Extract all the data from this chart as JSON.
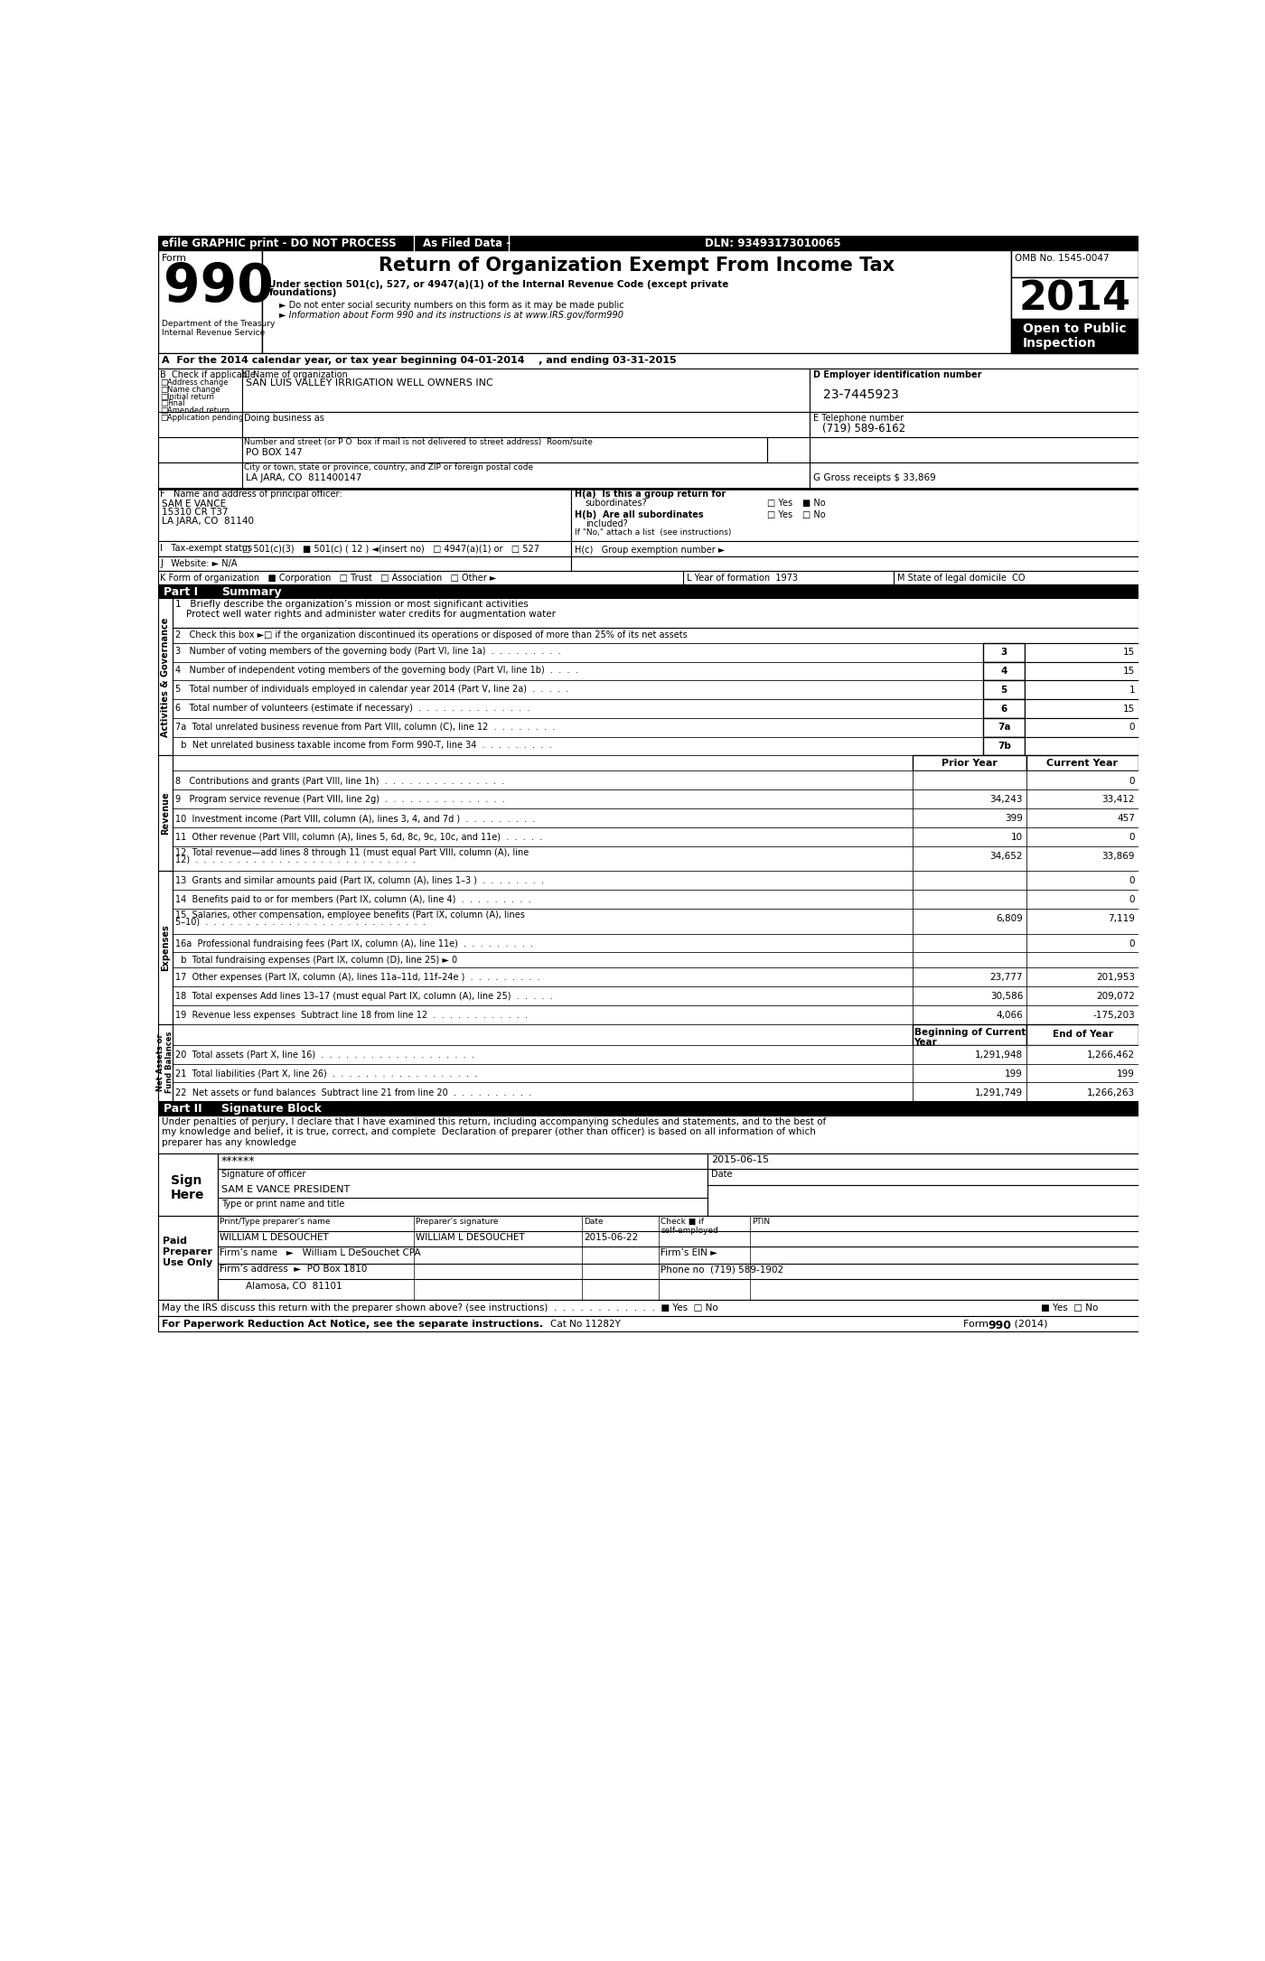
{
  "title": "Return of Organization Exempt From Income Tax",
  "subtitle": "Under section 501(c), 527, or 4947(a)(1) of the Internal Revenue Code (except private\nfoundations)",
  "form_number": "990",
  "year": "2014",
  "omb": "OMB No. 1545-0047",
  "open_to_public": "Open to Public\nInspection",
  "efile_header": "efile GRAPHIC print - DO NOT PROCESS",
  "as_filed": "As Filed Data -",
  "dln": "DLN: 93493173010065",
  "dept": "Department of the Treasury\nInternal Revenue Service",
  "bullet1": "► Do not enter social security numbers on this form as it may be made public",
  "bullet2": "► Information about Form 990 and its instructions is at www.IRS.gov/form990",
  "section_a": "A  For the 2014 calendar year, or tax year beginning 04-01-2014    , and ending 03-31-2015",
  "org_name": "SAN LUIS VALLEY IRRIGATION WELL OWNERS INC",
  "ein": "23-7445923",
  "phone": "(719) 589-6162",
  "city": "LA JARA, CO  811400147",
  "g_label": "G Gross receipts $ 33,869",
  "officer_name": "SAM E VANCE",
  "officer_addr1": "15310 CR T37",
  "officer_addr2": "LA JARA, CO  81140",
  "line1_text": "Protect well water rights and administer water credits for augmentation water",
  "line3_val": "15",
  "line4_val": "15",
  "line5_val": "1",
  "line6_val": "15",
  "line7a_val": "0",
  "col_prior": "Prior Year",
  "col_current": "Current Year",
  "line8_prior": "",
  "line8_current": "0",
  "line9_prior": "34,243",
  "line9_current": "33,412",
  "line10_prior": "399",
  "line10_current": "457",
  "line11_prior": "10",
  "line11_current": "0",
  "line12_prior": "34,652",
  "line12_current": "33,869",
  "line13_prior": "",
  "line13_current": "0",
  "line14_prior": "",
  "line14_current": "0",
  "line15_prior": "6,809",
  "line15_current": "7,119",
  "line16a_prior": "",
  "line16a_current": "0",
  "line17_prior": "23,777",
  "line17_current": "201,953",
  "line18_prior": "30,586",
  "line18_current": "209,072",
  "line19_prior": "4,066",
  "line19_current": "-175,203",
  "col_beg": "Beginning of Current\nYear",
  "col_end": "End of Year",
  "line20_beg": "1,291,948",
  "line20_end": "1,266,462",
  "line21_beg": "199",
  "line21_end": "199",
  "line22_beg": "1,291,749",
  "line22_end": "1,266,263",
  "sig_text": "Under penalties of perjury, I declare that I have examined this return, including accompanying schedules and statements, and to the best of\nmy knowledge and belief, it is true, correct, and complete  Declaration of preparer (other than officer) is based on all information of which\npreparer has any knowledge",
  "sig_stars": "******",
  "sig_date": "2015-06-15",
  "sig_name": "SAM E VANCE PRESIDENT",
  "prep_name": "WILLIAM L DESOUCHET",
  "prep_sig": "WILLIAM L DESOUCHET",
  "prep_date": "2015-06-22",
  "firm_name": "Firm’s name   ►   William L DeSouchet CPA",
  "firm_ein": "Firm’s EIN ►",
  "firm_address": "Firm’s address  ►  PO Box 1810",
  "firm_city": "Alamosa, CO  81101",
  "firm_phone": "Phone no  (719) 589-1902",
  "discuss_label": "May the IRS discuss this return with the preparer shown above? (see instructions)  .  .  .  .  .  .  .  .  .  .  .  .  ■ Yes  □ No",
  "paperwork_label": "For Paperwork Reduction Act Notice, see the separate instructions.",
  "cat_no": "Cat No 11282Y",
  "form_bottom": "Form 990 (2014)"
}
